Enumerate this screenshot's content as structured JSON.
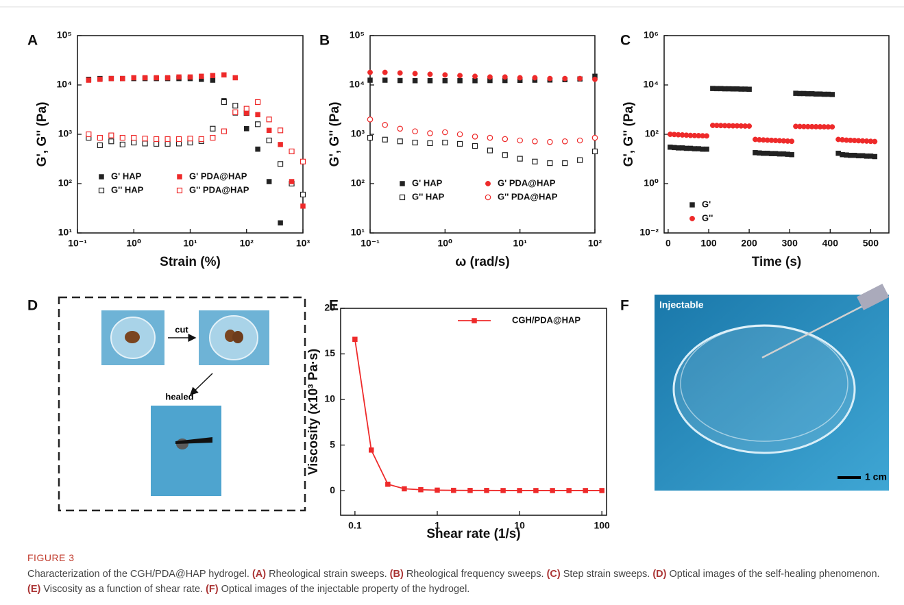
{
  "chart_data": [
    {
      "type": "scatter",
      "panel": "A",
      "xlabel": "Strain (%)",
      "ylabel": "G', G'' (Pa)",
      "xlog": true,
      "ylog": true,
      "xlim": [
        0.1,
        1000
      ],
      "ylim": [
        10,
        100000
      ],
      "xticks": [
        {
          "value": 0.1,
          "label": "10⁻¹"
        },
        {
          "value": 1,
          "label": "10⁰"
        },
        {
          "value": 10,
          "label": "10¹"
        },
        {
          "value": 100,
          "label": "10²"
        },
        {
          "value": 1000,
          "label": "10³"
        }
      ],
      "yticks": [
        {
          "value": 10,
          "label": "10¹"
        },
        {
          "value": 100,
          "label": "10²"
        },
        {
          "value": 1000,
          "label": "10³"
        },
        {
          "value": 10000,
          "label": "10⁴"
        },
        {
          "value": 100000,
          "label": "10⁵"
        }
      ],
      "series": [
        {
          "name": "G' HAP",
          "color": "#222222",
          "marker": "square",
          "x": [
            0.158,
            0.251,
            0.398,
            0.631,
            1,
            1.58,
            2.51,
            3.98,
            6.31,
            10,
            15.8,
            25.1,
            39.8,
            63.1,
            100,
            158,
            251,
            398
          ],
          "values": [
            13000,
            13500,
            13500,
            13500,
            13500,
            13500,
            13500,
            13500,
            13500,
            13500,
            13000,
            12500,
            4800,
            2700,
            1300,
            500,
            110,
            16
          ]
        },
        {
          "name": "G'' HAP",
          "color": "#222222",
          "marker": "square-open",
          "x": [
            0.158,
            0.251,
            0.398,
            0.631,
            1,
            1.58,
            2.51,
            3.98,
            6.31,
            10,
            15.8,
            25.1,
            39.8,
            63.1,
            100,
            158,
            251,
            398,
            631,
            1000
          ],
          "values": [
            850,
            600,
            720,
            620,
            680,
            650,
            640,
            640,
            650,
            680,
            730,
            1300,
            4500,
            3800,
            2700,
            1600,
            750,
            250,
            100,
            60
          ]
        },
        {
          "name": "G' PDA@HAP",
          "color": "#ee2a2a",
          "marker": "square",
          "x": [
            0.158,
            0.251,
            0.398,
            0.631,
            1,
            1.58,
            2.51,
            3.98,
            6.31,
            10,
            15.8,
            25.1,
            39.8,
            63.1,
            100,
            158,
            251,
            398,
            631,
            1000
          ],
          "values": [
            12500,
            13000,
            13500,
            13500,
            14000,
            14000,
            14000,
            14000,
            14500,
            14500,
            15000,
            15500,
            16000,
            14000,
            2700,
            2500,
            1200,
            620,
            110,
            35
          ]
        },
        {
          "name": "G'' PDA@HAP",
          "color": "#ee2a2a",
          "marker": "square-open",
          "x": [
            0.158,
            0.251,
            0.398,
            0.631,
            1,
            1.58,
            2.51,
            3.98,
            6.31,
            10,
            15.8,
            25.1,
            39.8,
            63.1,
            100,
            158,
            251,
            398,
            631,
            1000
          ],
          "values": [
            1000,
            850,
            950,
            850,
            850,
            820,
            800,
            800,
            800,
            820,
            800,
            850,
            1150,
            2800,
            3300,
            4500,
            2000,
            1200,
            450,
            280
          ]
        }
      ]
    },
    {
      "type": "scatter",
      "panel": "B",
      "xlabel": "ω (rad/s)",
      "ylabel": "G', G'' (Pa)",
      "xlog": true,
      "ylog": true,
      "xlim": [
        0.1,
        100
      ],
      "ylim": [
        10,
        100000
      ],
      "xticks": [
        {
          "value": 0.1,
          "label": "10⁻¹"
        },
        {
          "value": 1,
          "label": "10⁰"
        },
        {
          "value": 10,
          "label": "10¹"
        },
        {
          "value": 100,
          "label": "10²"
        }
      ],
      "yticks": [
        {
          "value": 10,
          "label": "10¹"
        },
        {
          "value": 100,
          "label": "10²"
        },
        {
          "value": 1000,
          "label": "10³"
        },
        {
          "value": 10000,
          "label": "10⁴"
        },
        {
          "value": 100000,
          "label": "10⁵"
        }
      ],
      "series": [
        {
          "name": "G' HAP",
          "color": "#222222",
          "marker": "square",
          "x": [
            0.1,
            0.158,
            0.251,
            0.398,
            0.631,
            1,
            1.58,
            2.51,
            3.98,
            6.31,
            10,
            15.8,
            25.1,
            39.8,
            63.1,
            100
          ],
          "values": [
            12500,
            12500,
            12300,
            12200,
            12200,
            12200,
            12200,
            12200,
            12300,
            12300,
            12400,
            12500,
            12600,
            12800,
            13200,
            15000
          ]
        },
        {
          "name": "G'' HAP",
          "color": "#222222",
          "marker": "square-open",
          "x": [
            0.1,
            0.158,
            0.251,
            0.398,
            0.631,
            1,
            1.58,
            2.51,
            3.98,
            6.31,
            10,
            15.8,
            25.1,
            39.8,
            63.1,
            100
          ],
          "values": [
            850,
            780,
            720,
            680,
            660,
            680,
            640,
            580,
            470,
            380,
            320,
            280,
            260,
            260,
            300,
            450
          ]
        },
        {
          "name": "G' PDA@HAP",
          "color": "#ee2a2a",
          "marker": "circle",
          "x": [
            0.1,
            0.158,
            0.251,
            0.398,
            0.631,
            1,
            1.58,
            2.51,
            3.98,
            6.31,
            10,
            15.8,
            25.1,
            39.8,
            63.1,
            100
          ],
          "values": [
            18000,
            18000,
            17500,
            17000,
            16500,
            16000,
            15500,
            15000,
            14500,
            14500,
            14000,
            14000,
            13500,
            13500,
            13500,
            13000
          ]
        },
        {
          "name": "G'' PDA@HAP",
          "color": "#ee2a2a",
          "marker": "circle-open",
          "x": [
            0.1,
            0.158,
            0.251,
            0.398,
            0.631,
            1,
            1.58,
            2.51,
            3.98,
            6.31,
            10,
            15.8,
            25.1,
            39.8,
            63.1,
            100
          ],
          "values": [
            2000,
            1550,
            1300,
            1150,
            1050,
            1100,
            1000,
            900,
            850,
            800,
            750,
            720,
            700,
            720,
            750,
            850
          ]
        }
      ]
    },
    {
      "type": "scatter",
      "panel": "C",
      "xlabel": "Time (s)",
      "ylabel": "G', G'' (Pa)",
      "xlog": false,
      "ylog": true,
      "xlim": [
        -10,
        545
      ],
      "ylim": [
        0.01,
        1000000
      ],
      "xticks": [
        0,
        100,
        200,
        300,
        400,
        500
      ],
      "yticks": [
        {
          "value": 0.01,
          "label": "10⁻²"
        },
        {
          "value": 1,
          "label": "10⁰"
        },
        {
          "value": 100,
          "label": "10²"
        },
        {
          "value": 10000,
          "label": "10⁴"
        },
        {
          "value": 1000000,
          "label": "10⁶"
        }
      ],
      "series": [
        {
          "name": "G'",
          "color": "#222222",
          "marker": "square",
          "x": [
            5,
            15,
            25,
            35,
            45,
            55,
            65,
            75,
            85,
            95,
            110,
            120,
            130,
            140,
            150,
            160,
            170,
            180,
            190,
            200,
            215,
            225,
            235,
            245,
            255,
            265,
            275,
            285,
            295,
            305,
            315,
            325,
            335,
            345,
            355,
            365,
            375,
            385,
            395,
            405,
            420,
            430,
            440,
            450,
            460,
            470,
            480,
            490,
            500,
            510
          ],
          "values": [
            30,
            29,
            28,
            28,
            27,
            27,
            26,
            26,
            25,
            25,
            7200,
            7100,
            7100,
            7000,
            7000,
            6900,
            6900,
            6800,
            6800,
            6700,
            18,
            17.5,
            17,
            17,
            16.5,
            16.5,
            16,
            16,
            15.5,
            15,
            4600,
            4500,
            4500,
            4400,
            4400,
            4300,
            4300,
            4200,
            4200,
            4100,
            17,
            15,
            14.5,
            14,
            14,
            13.5,
            13.5,
            13,
            13,
            12.5
          ]
        },
        {
          "name": "G''",
          "color": "#ee2a2a",
          "marker": "circle",
          "x": [
            5,
            15,
            25,
            35,
            45,
            55,
            65,
            75,
            85,
            95,
            110,
            120,
            130,
            140,
            150,
            160,
            170,
            180,
            190,
            200,
            215,
            225,
            235,
            245,
            255,
            265,
            275,
            285,
            295,
            305,
            315,
            325,
            335,
            345,
            355,
            365,
            375,
            385,
            395,
            405,
            420,
            430,
            440,
            450,
            460,
            470,
            480,
            490,
            500,
            510
          ],
          "values": [
            100,
            98,
            96,
            94,
            92,
            90,
            89,
            88,
            87,
            86,
            230,
            228,
            226,
            224,
            222,
            220,
            220,
            218,
            216,
            215,
            62,
            60,
            59,
            58,
            57,
            56,
            55,
            54,
            53,
            52,
            210,
            208,
            206,
            205,
            204,
            203,
            202,
            201,
            200,
            200,
            62,
            60,
            58,
            57,
            56,
            55,
            54,
            53,
            52,
            51
          ]
        }
      ]
    },
    {
      "type": "line",
      "panel": "E",
      "xlabel": "Shear rate (1/s)",
      "ylabel": "Viscosity (x10³ Pa·s)",
      "xlog": true,
      "ylog": false,
      "xlim": [
        0.067,
        114
      ],
      "ylim": [
        -2.7,
        20
      ],
      "xticks": [
        0.1,
        1,
        10,
        100
      ],
      "yticks": [
        0,
        5,
        10,
        15,
        20
      ],
      "x": [
        0.1,
        0.158,
        0.251,
        0.398,
        0.631,
        1,
        1.58,
        2.51,
        3.98,
        6.31,
        10,
        15.8,
        25.1,
        39.8,
        63.1,
        100
      ],
      "series": [
        {
          "name": "CGH/PDA@HAP",
          "color": "#ee2a2a",
          "marker": "square",
          "values": [
            16.6,
            4.45,
            0.7,
            0.2,
            0.1,
            0.05,
            0.03,
            0.02,
            0.02,
            0.01,
            0.01,
            0.01,
            0.01,
            0.01,
            0.01,
            0.01
          ]
        }
      ]
    }
  ],
  "images": {
    "panel_d": "D",
    "cut": "cut",
    "healed": "healed",
    "panel_f": "F",
    "injectable": "Injectable",
    "scale": "1 cm"
  },
  "caption": {
    "label": "FIGURE 3",
    "lead": "Characterization of the CGH/PDA@HAP hydrogel.",
    "items": [
      {
        "tag": "(A)",
        "text": "Rheological strain sweeps."
      },
      {
        "tag": "(B)",
        "text": "Rheological frequency sweeps."
      },
      {
        "tag": "(C)",
        "text": "Step strain sweeps."
      },
      {
        "tag": "(D)",
        "text": "Optical images of the self-healing phenomenon."
      },
      {
        "tag": "(E)",
        "text": "Viscosity as a function of shear rate."
      },
      {
        "tag": "(F)",
        "text": "Optical images of the injectable property of the hydrogel."
      }
    ]
  }
}
